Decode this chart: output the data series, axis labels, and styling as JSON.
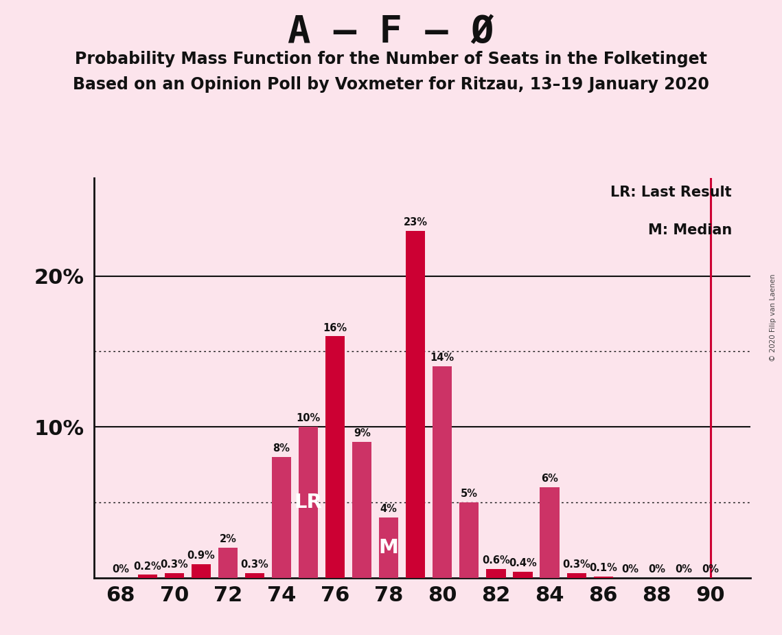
{
  "title": "A – F – Ø",
  "subtitle1": "Probability Mass Function for the Number of Seats in the Folketinget",
  "subtitle2": "Based on an Opinion Poll by Voxmeter for Ritzau, 13–19 January 2020",
  "copyright": "© 2020 Filip van Laenen",
  "seats": [
    68,
    69,
    70,
    71,
    72,
    73,
    74,
    75,
    76,
    77,
    78,
    79,
    80,
    81,
    82,
    83,
    84,
    85,
    86,
    87,
    88,
    89,
    90
  ],
  "probabilities": [
    0.0,
    0.2,
    0.3,
    0.9,
    2.0,
    0.3,
    8.0,
    10.0,
    16.0,
    9.0,
    4.0,
    23.0,
    14.0,
    5.0,
    0.6,
    0.4,
    6.0,
    0.3,
    0.1,
    0.0,
    0.0,
    0.0,
    0.0
  ],
  "colors": [
    "#cc0033",
    "#cc0033",
    "#cc0033",
    "#cc0033",
    "#cc3366",
    "#cc0033",
    "#cc3366",
    "#cc3366",
    "#cc0033",
    "#cc3366",
    "#cc3366",
    "#cc0033",
    "#cc3366",
    "#cc3366",
    "#cc0033",
    "#cc0033",
    "#cc3366",
    "#cc0033",
    "#cc0033",
    "#cc0033",
    "#cc0033",
    "#cc0033",
    "#cc0033"
  ],
  "LR_seat": 75,
  "M_seat": 78,
  "LR_line_seat": 90,
  "background_color": "#fce4ec",
  "dark_red": "#cc0033",
  "pink": "#cc3366",
  "ylim": [
    0,
    26.5
  ],
  "xlim": [
    67.0,
    91.5
  ],
  "title_fontsize": 40,
  "subtitle_fontsize": 17,
  "label_fontsize": 10.5,
  "tick_fontsize": 22,
  "legend_text1": "LR: Last Result",
  "legend_text2": "M: Median"
}
